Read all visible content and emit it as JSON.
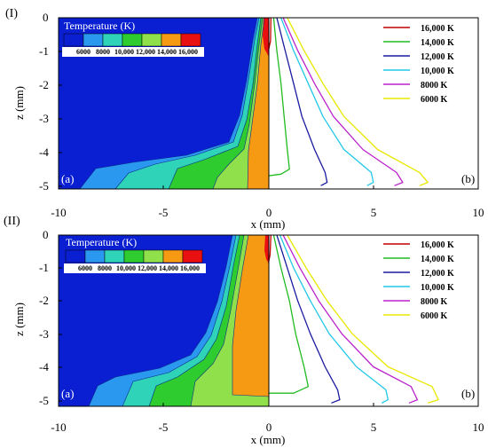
{
  "chart_data": [
    {
      "panel": "(I)",
      "type": "contour",
      "xlabel": "x (mm)",
      "ylabel": "z (mm)",
      "xlim": [
        -10,
        10
      ],
      "ylim": [
        -5.2,
        0
      ],
      "x_ticks": [
        "-10",
        "-5",
        "0",
        "5",
        "10"
      ],
      "y_ticks": [
        "0",
        "-1",
        "-2",
        "-3",
        "-4",
        "-5"
      ],
      "left_label": "(a)",
      "right_label": "(b)",
      "colorbar": {
        "title": "Temperature (K)",
        "tick_labels": [
          "6000",
          "8000",
          "10,000",
          "12,000",
          "14,000",
          "16,000"
        ],
        "colors": [
          "#0a1fd2",
          "#2b98f0",
          "#2fd3b8",
          "#2ecc2e",
          "#8fe04a",
          "#f59a12",
          "#e81010"
        ]
      },
      "legend": [
        {
          "label": "16,000 K",
          "color": "#c00000"
        },
        {
          "label": "14,000 K",
          "color": "#22bb22"
        },
        {
          "label": "12,000 K",
          "color": "#1a1aa0"
        },
        {
          "label": "10,000 K",
          "color": "#22c8e8"
        },
        {
          "label": "8000 K",
          "color": "#bb22cc"
        },
        {
          "label": "6000 K",
          "color": "#e8e800"
        }
      ],
      "isotherms": [
        {
          "T": 6000,
          "color": "#e8e800",
          "points": [
            [
              0.9,
              0
            ],
            [
              1.7,
              -1
            ],
            [
              2.6,
              -2
            ],
            [
              3.6,
              -3
            ],
            [
              5.2,
              -4
            ],
            [
              7.2,
              -4.7
            ],
            [
              7.6,
              -5
            ],
            [
              7.2,
              -5.1
            ]
          ]
        },
        {
          "T": 8000,
          "color": "#bb22cc",
          "points": [
            [
              0.7,
              0
            ],
            [
              1.4,
              -1
            ],
            [
              2.2,
              -2
            ],
            [
              3.1,
              -3
            ],
            [
              4.5,
              -4
            ],
            [
              6.1,
              -4.7
            ],
            [
              6.4,
              -5
            ],
            [
              6.0,
              -5.1
            ]
          ]
        },
        {
          "T": 10000,
          "color": "#22c8e8",
          "points": [
            [
              0.6,
              0
            ],
            [
              1.2,
              -1
            ],
            [
              1.9,
              -2
            ],
            [
              2.6,
              -3
            ],
            [
              3.6,
              -4
            ],
            [
              4.9,
              -4.7
            ],
            [
              5.0,
              -5
            ],
            [
              4.7,
              -5.1
            ]
          ]
        },
        {
          "T": 12000,
          "color": "#1a1aa0",
          "points": [
            [
              0.4,
              0
            ],
            [
              0.8,
              -1
            ],
            [
              1.2,
              -2
            ],
            [
              1.6,
              -3
            ],
            [
              2.2,
              -4
            ],
            [
              2.7,
              -4.7
            ],
            [
              2.8,
              -5
            ],
            [
              2.5,
              -5.1
            ]
          ]
        },
        {
          "T": 14000,
          "color": "#22bb22",
          "points": [
            [
              0.25,
              0
            ],
            [
              0.4,
              -1
            ],
            [
              0.6,
              -2
            ],
            [
              0.75,
              -3
            ],
            [
              0.9,
              -4
            ],
            [
              1.0,
              -4.6
            ],
            [
              0.6,
              -4.75
            ],
            [
              0,
              -4.8
            ]
          ]
        },
        {
          "T": 16000,
          "color": "#c00000",
          "points": [
            [
              0.12,
              0
            ],
            [
              0.1,
              -0.7
            ],
            [
              0,
              -1.0
            ]
          ]
        }
      ]
    },
    {
      "panel": "(II)",
      "type": "contour",
      "xlabel": "x (mm)",
      "ylabel": "z (mm)",
      "xlim": [
        -10,
        10
      ],
      "ylim": [
        -5.2,
        0
      ],
      "x_ticks": [
        "-10",
        "-5",
        "0",
        "5",
        "10"
      ],
      "y_ticks": [
        "0",
        "-1",
        "-2",
        "-3",
        "-4",
        "-5"
      ],
      "left_label": "(a)",
      "right_label": "(b)",
      "colorbar": {
        "title": "Temperature (K)",
        "tick_labels": [
          "6000",
          "8000",
          "10,000",
          "12,000",
          "14,000",
          "16,000"
        ],
        "colors": [
          "#0a1fd2",
          "#2b98f0",
          "#2fd3b8",
          "#2ecc2e",
          "#8fe04a",
          "#f59a12",
          "#e81010"
        ]
      },
      "legend": [
        {
          "label": "16,000 K",
          "color": "#c00000"
        },
        {
          "label": "14,000 K",
          "color": "#22bb22"
        },
        {
          "label": "12,000 K",
          "color": "#1a1aa0"
        },
        {
          "label": "10,000 K",
          "color": "#22c8e8"
        },
        {
          "label": "8000 K",
          "color": "#bb22cc"
        },
        {
          "label": "6000 K",
          "color": "#e8e800"
        }
      ],
      "isotherms": [
        {
          "T": 6000,
          "color": "#e8e800",
          "points": [
            [
              0.9,
              0
            ],
            [
              1.8,
              -1
            ],
            [
              2.8,
              -2
            ],
            [
              4.0,
              -3
            ],
            [
              5.7,
              -4
            ],
            [
              7.8,
              -4.6
            ],
            [
              8.1,
              -5
            ],
            [
              7.6,
              -5.1
            ]
          ]
        },
        {
          "T": 8000,
          "color": "#bb22cc",
          "points": [
            [
              0.7,
              0
            ],
            [
              1.5,
              -1
            ],
            [
              2.4,
              -2
            ],
            [
              3.5,
              -3
            ],
            [
              5.0,
              -4
            ],
            [
              6.8,
              -4.6
            ],
            [
              7.1,
              -5
            ],
            [
              6.7,
              -5.1
            ]
          ]
        },
        {
          "T": 10000,
          "color": "#22c8e8",
          "points": [
            [
              0.55,
              0
            ],
            [
              1.2,
              -1
            ],
            [
              2.0,
              -2
            ],
            [
              2.9,
              -3
            ],
            [
              4.2,
              -4
            ],
            [
              5.6,
              -4.7
            ],
            [
              5.7,
              -5
            ],
            [
              5.4,
              -5.1
            ]
          ]
        },
        {
          "T": 12000,
          "color": "#1a1aa0",
          "points": [
            [
              0.4,
              0
            ],
            [
              0.9,
              -1
            ],
            [
              1.4,
              -2
            ],
            [
              2.0,
              -3
            ],
            [
              2.7,
              -4
            ],
            [
              3.3,
              -4.7
            ],
            [
              3.4,
              -5
            ],
            [
              3.0,
              -5.1
            ]
          ]
        },
        {
          "T": 14000,
          "color": "#22bb22",
          "points": [
            [
              0.25,
              0
            ],
            [
              0.6,
              -1
            ],
            [
              1.0,
              -2
            ],
            [
              1.3,
              -3
            ],
            [
              1.7,
              -4
            ],
            [
              1.9,
              -4.6
            ],
            [
              1.2,
              -4.8
            ],
            [
              0,
              -4.8
            ]
          ]
        },
        {
          "T": 16000,
          "color": "#c00000",
          "points": [
            [
              0.12,
              0
            ],
            [
              0.08,
              -0.6
            ],
            [
              0,
              -0.85
            ]
          ]
        }
      ]
    }
  ]
}
